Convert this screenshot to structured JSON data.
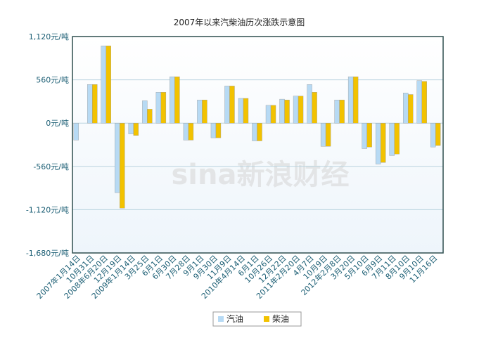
{
  "chart_data": {
    "type": "bar",
    "title": "2007年以来汽柴油历次涨跌示意图",
    "watermark": "sina新浪财经",
    "categories": [
      "2007年1月14日",
      "10月31日",
      "2008年6月20日",
      "12月19日",
      "2009年1月14日",
      "3月25日",
      "6月1日",
      "6月30日",
      "7月28日",
      "9月1日",
      "9月30日",
      "11月9日",
      "2010年4月14日",
      "6月1日",
      "10月26日",
      "12月22日",
      "2011年2月20日",
      "4月7日",
      "10月9日",
      "2012年2月8日",
      "3月20日",
      "5月10日",
      "6月9日",
      "7月11日",
      "8月10日",
      "9月10日",
      "11月16日"
    ],
    "series": [
      {
        "name": "汽油",
        "color": "#b7daf4",
        "values": [
          -220,
          500,
          1000,
          -900,
          -140,
          290,
          400,
          600,
          -220,
          300,
          -190,
          480,
          320,
          -230,
          230,
          310,
          350,
          500,
          -300,
          300,
          600,
          -330,
          -530,
          -420,
          390,
          550,
          -310
        ]
      },
      {
        "name": "柴油",
        "color": "#f2c200",
        "values": [
          null,
          500,
          1000,
          -1100,
          -160,
          180,
          400,
          600,
          -220,
          300,
          -190,
          480,
          320,
          -230,
          230,
          300,
          350,
          400,
          -300,
          300,
          600,
          -310,
          -510,
          -400,
          370,
          540,
          -290
        ]
      }
    ],
    "ylim": [
      -1680,
      1120
    ],
    "yticks": [
      {
        "value": 1120,
        "label": "1,120元/吨"
      },
      {
        "value": 560,
        "label": "560元/吨"
      },
      {
        "value": 0,
        "label": "0元/吨"
      },
      {
        "value": -560,
        "label": "-560元/吨"
      },
      {
        "value": -1120,
        "label": "-1,120元/吨"
      },
      {
        "value": -1680,
        "label": "-1,680元/吨"
      }
    ],
    "grid": true
  }
}
